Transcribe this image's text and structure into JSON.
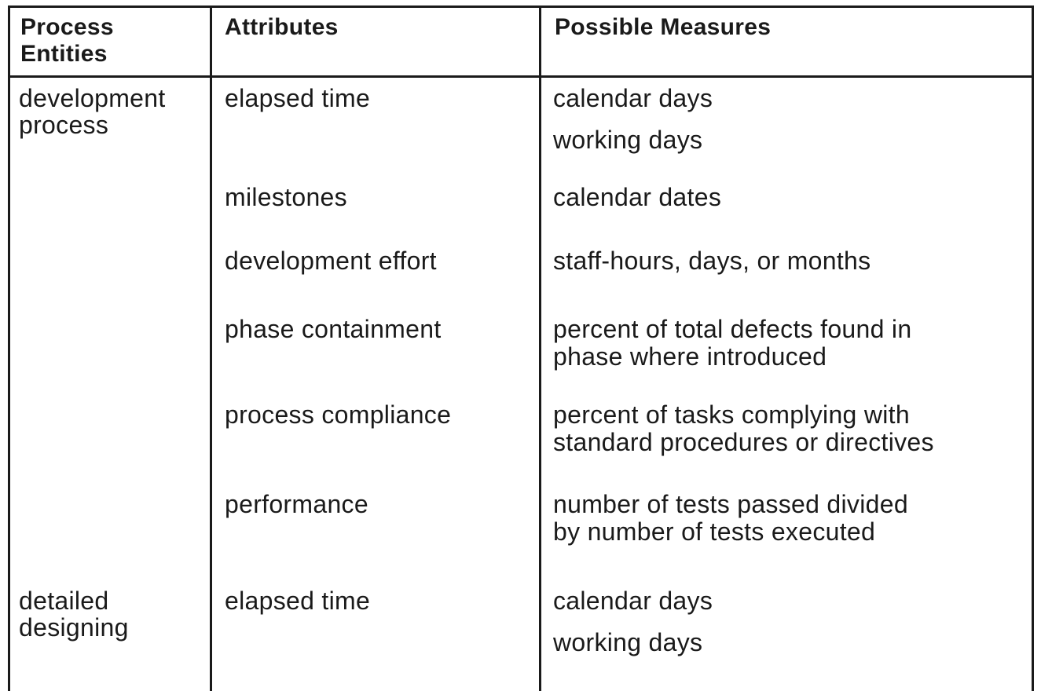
{
  "table": {
    "headers": {
      "entities": [
        "Process",
        "Entities"
      ],
      "attributes": "Attributes",
      "measures": "Possible Measures"
    },
    "rows": [
      {
        "entity": [
          "development",
          "process"
        ],
        "items": [
          {
            "attribute": "elapsed time",
            "measures": [
              "calendar days",
              "working days"
            ]
          },
          {
            "attribute": "milestones",
            "measures": [
              "calendar dates"
            ]
          },
          {
            "attribute": "development effort",
            "measures": [
              "staff-hours, days, or months"
            ]
          },
          {
            "attribute": "phase containment",
            "measures": [
              "percent of total defects found in",
              "phase where introduced"
            ]
          },
          {
            "attribute": "process compliance",
            "measures": [
              "percent of tasks complying with",
              "standard procedures or directives"
            ]
          },
          {
            "attribute": "performance",
            "measures": [
              "number of tests passed divided",
              "by number of tests executed"
            ]
          }
        ]
      },
      {
        "entity": [
          "detailed",
          "designing"
        ],
        "items": [
          {
            "attribute": "elapsed time",
            "measures": [
              "calendar days",
              "working days"
            ]
          }
        ]
      }
    ]
  }
}
